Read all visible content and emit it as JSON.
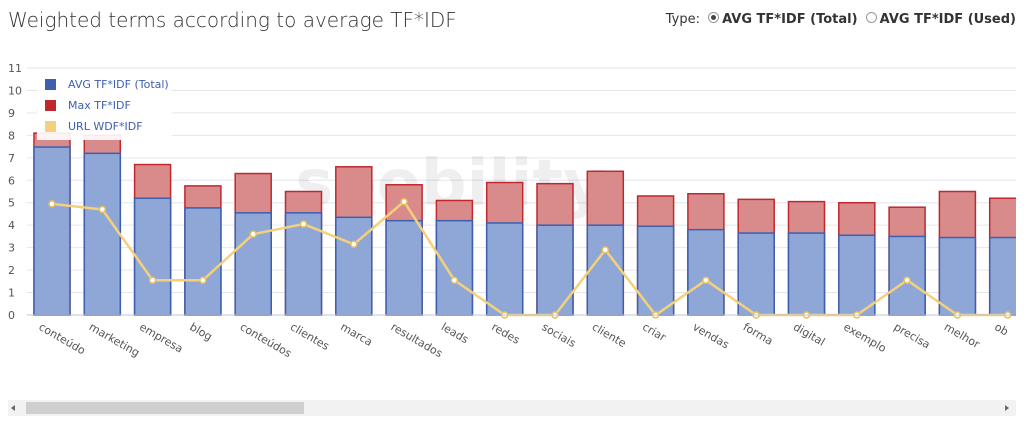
{
  "chart_data": {
    "type": "bar",
    "title": "Weighted terms according to average TF*IDF",
    "controls": {
      "label": "Type:",
      "options": [
        "AVG TF*IDF (Total)",
        "AVG TF*IDF (Used)"
      ]
    },
    "watermark": "seobility",
    "categories": [
      "conteúdo",
      "marketing",
      "empresa",
      "blog",
      "conteúdos",
      "clientes",
      "marca",
      "resultados",
      "leads",
      "redes",
      "sociais",
      "cliente",
      "criar",
      "vendas",
      "forma",
      "digital",
      "exemplo",
      "precisa",
      "melhor",
      "ob"
    ],
    "series": [
      {
        "name": "AVG TF*IDF (Total)",
        "color": "#3d5fae",
        "values": [
          7.48,
          7.2,
          5.2,
          4.77,
          4.55,
          4.55,
          4.35,
          4.2,
          4.2,
          4.1,
          4.0,
          4.0,
          3.95,
          3.8,
          3.65,
          3.65,
          3.55,
          3.5,
          3.45,
          3.45
        ]
      },
      {
        "name": "Max TF*IDF",
        "color": "#c0282d",
        "values": [
          8.1,
          8.0,
          6.7,
          5.75,
          6.3,
          5.5,
          6.6,
          5.8,
          5.1,
          5.9,
          5.85,
          6.4,
          5.3,
          5.4,
          5.15,
          5.05,
          5.0,
          4.8,
          5.5,
          5.2
        ]
      },
      {
        "name": "URL WDF*IDF",
        "color": "#f5d07a",
        "type": "line",
        "values": [
          4.95,
          4.7,
          1.55,
          1.55,
          3.6,
          4.05,
          3.15,
          5.05,
          1.55,
          0,
          0,
          2.9,
          0,
          1.55,
          0,
          0,
          0,
          1.55,
          0,
          0
        ]
      }
    ],
    "ylim": [
      0,
      11
    ],
    "yticks": [
      0,
      1,
      2,
      3,
      4,
      5,
      6,
      7,
      8,
      9,
      10,
      11
    ],
    "grid": true
  }
}
